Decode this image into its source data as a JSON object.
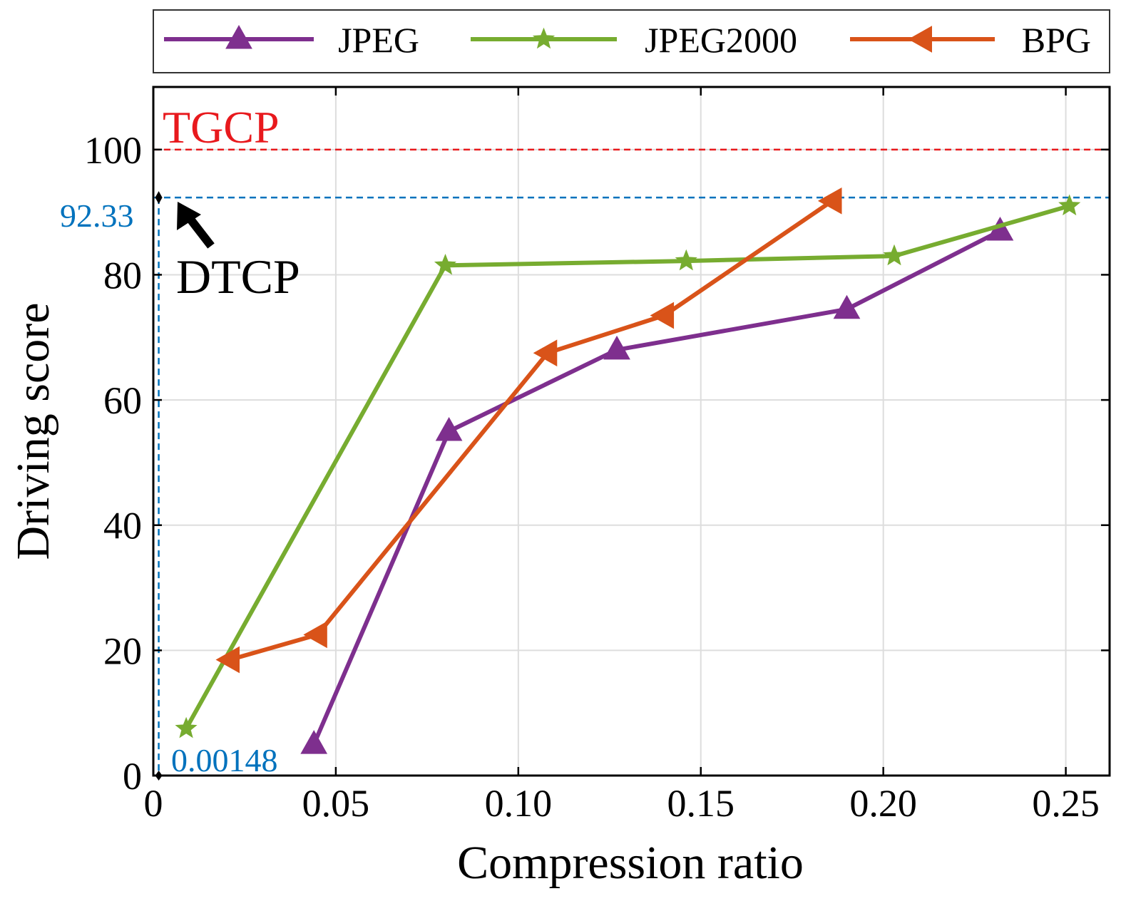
{
  "chart_data": {
    "type": "line",
    "xlabel": "Compression ratio",
    "ylabel": "Driving score",
    "xlim": [
      0,
      0.262
    ],
    "ylim": [
      0,
      110
    ],
    "xticks": [
      0,
      0.05,
      0.1,
      0.15,
      0.2,
      0.25
    ],
    "xtick_labels": [
      "0",
      "0.05",
      "0.10",
      "0.15",
      "0.20",
      "0.25"
    ],
    "yticks": [
      0,
      20,
      40,
      60,
      80,
      100
    ],
    "ytick_labels": [
      "0",
      "20",
      "40",
      "60",
      "80",
      "100"
    ],
    "grid": true,
    "legend_position": "top",
    "series": [
      {
        "name": "JPEG",
        "color": "#7E2F8E",
        "marker": "triangle-up",
        "x": [
          0.044,
          0.081,
          0.127,
          0.19,
          0.232
        ],
        "y": [
          5.0,
          55.0,
          68.0,
          74.5,
          87.0
        ]
      },
      {
        "name": "JPEG2000",
        "color": "#77AC30",
        "marker": "star",
        "x": [
          0.009,
          0.08,
          0.146,
          0.203,
          0.251
        ],
        "y": [
          7.5,
          81.5,
          82.2,
          83.0,
          91.0
        ]
      },
      {
        "name": "BPG",
        "color": "#D95319",
        "marker": "triangle-left",
        "x": [
          0.021,
          0.045,
          0.108,
          0.14,
          0.186
        ],
        "y": [
          18.5,
          22.5,
          67.5,
          73.5,
          91.8
        ]
      }
    ],
    "reference_lines": [
      {
        "label": "TGCP",
        "y": 100,
        "color": "#E8191D"
      },
      {
        "label": "92.33",
        "y": 92.33,
        "color": "#0072BD"
      }
    ],
    "annotations": {
      "dtcp_label": "DTCP",
      "dtcp_point": {
        "x": 0.00148,
        "y": 92.33
      },
      "ratio_label": "0.00148",
      "ratio_color": "#0072BD",
      "score_label": "92.33"
    }
  }
}
